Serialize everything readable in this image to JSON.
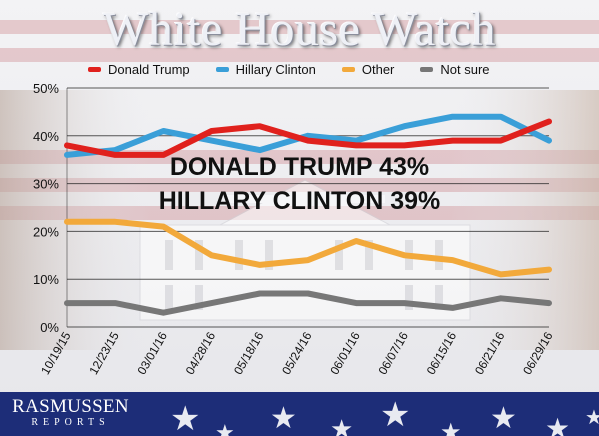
{
  "title": "White House Watch",
  "headline": {
    "line1": "DONALD TRUMP 43%",
    "line2": "HILLARY CLINTON 39%"
  },
  "footer": {
    "logo_name": "RASMUSSEN",
    "logo_sub": "REPORTS"
  },
  "colors": {
    "trump": "#e0211d",
    "clinton": "#3a9fd8",
    "other": "#f2a93b",
    "not_sure": "#777777",
    "flag_blue": "#1d2d78",
    "flag_red": "#b53a42"
  },
  "chart_data": {
    "type": "line",
    "title": "White House Watch",
    "categories": [
      "10/19/15",
      "12/23/15",
      "03/01/16",
      "04/28/16",
      "05/18/16",
      "05/24/16",
      "06/01/16",
      "06/07/16",
      "06/15/16",
      "06/21/16",
      "06/29/16"
    ],
    "y_ticks": [
      "0%",
      "10%",
      "20%",
      "30%",
      "40%",
      "50%"
    ],
    "ylim": [
      0,
      50
    ],
    "grid": true,
    "legend_position": "top",
    "series": [
      {
        "name": "Donald Trump",
        "color": "#e0211d",
        "values": [
          38,
          36,
          36,
          41,
          42,
          39,
          38,
          38,
          39,
          39,
          43
        ]
      },
      {
        "name": "Hillary Clinton",
        "color": "#3a9fd8",
        "values": [
          36,
          37,
          41,
          39,
          37,
          40,
          39,
          42,
          44,
          44,
          39
        ]
      },
      {
        "name": "Other",
        "color": "#f2a93b",
        "values": [
          22,
          22,
          21,
          15,
          13,
          14,
          18,
          15,
          14,
          11,
          12
        ]
      },
      {
        "name": "Not sure",
        "color": "#777777",
        "values": [
          5,
          5,
          3,
          5,
          7,
          7,
          5,
          5,
          4,
          6,
          5
        ]
      }
    ]
  }
}
